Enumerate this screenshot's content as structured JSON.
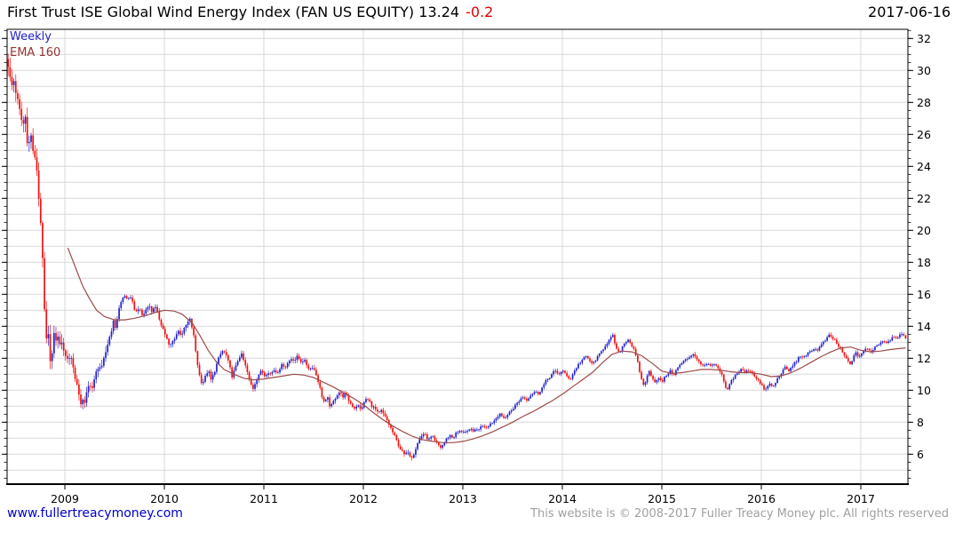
{
  "header": {
    "title": "First Trust ISE Global Wind Energy Index (FAN US EQUITY) 13.24",
    "change": "-0.2",
    "date": "2017-06-16"
  },
  "legend": {
    "timeframe": "Weekly",
    "ema": "EMA 160"
  },
  "footer": {
    "link": "www.fullertreacymoney.com",
    "copyright": "This website is © 2008-2017 Fuller Treacy Money plc. All rights reserved"
  },
  "colors": {
    "up_candle": "#2222cc",
    "down_candle": "#ee1111",
    "ema_line": "#9d4a4a",
    "grid": "#d8d8d8",
    "axis": "#000000",
    "tick_label": "#000000",
    "title_text": "#000000",
    "change_text": "#dd0000",
    "link_text": "#0000cc",
    "copyright_text": "#a0a0a0",
    "weekly_text": "#2222cc",
    "ema_text": "#993333"
  },
  "chart_data": {
    "type": "candlestick",
    "title": "First Trust ISE Global Wind Energy Index (FAN US EQUITY)",
    "timeframe": "weekly",
    "overlay": "EMA 160",
    "last_close": 13.24,
    "last_change": -0.2,
    "xlabel": "",
    "ylabel": "",
    "x_axis": {
      "start": 2008.43,
      "end": 2017.47,
      "year_labels": [
        2009,
        2010,
        2011,
        2012,
        2013,
        2014,
        2015,
        2016,
        2017
      ]
    },
    "y_axis": {
      "min": 4.1,
      "max": 32.6,
      "labels": [
        6,
        8,
        10,
        12,
        14,
        16,
        18,
        20,
        22,
        24,
        26,
        28,
        30,
        32
      ],
      "grid_step": 1,
      "minor_tick_step": 0.5
    },
    "grid": true,
    "legend_position": "top-left",
    "close_anchors": [
      [
        2008.43,
        30.4
      ],
      [
        2008.46,
        28.9
      ],
      [
        2008.49,
        29.4
      ],
      [
        2008.52,
        28.2
      ],
      [
        2008.55,
        27.3
      ],
      [
        2008.58,
        26.5
      ],
      [
        2008.6,
        27.3
      ],
      [
        2008.63,
        25.2
      ],
      [
        2008.66,
        25.9
      ],
      [
        2008.69,
        24.6
      ],
      [
        2008.72,
        23.8
      ],
      [
        2008.74,
        21.8
      ],
      [
        2008.76,
        20.4
      ],
      [
        2008.78,
        17.4
      ],
      [
        2008.8,
        14.2
      ],
      [
        2008.82,
        12.6
      ],
      [
        2008.84,
        13.6
      ],
      [
        2008.86,
        11.3
      ],
      [
        2008.88,
        12.8
      ],
      [
        2008.9,
        13.7
      ],
      [
        2008.92,
        12.9
      ],
      [
        2008.94,
        13.5
      ],
      [
        2008.96,
        12.6
      ],
      [
        2008.98,
        12.9
      ],
      [
        2009.0,
        12.3
      ],
      [
        2009.03,
        11.9
      ],
      [
        2009.06,
        12.2
      ],
      [
        2009.09,
        11.2
      ],
      [
        2009.12,
        10.4
      ],
      [
        2009.14,
        9.6
      ],
      [
        2009.16,
        9.2
      ],
      [
        2009.18,
        9.5
      ],
      [
        2009.2,
        9.1
      ],
      [
        2009.22,
        9.8
      ],
      [
        2009.25,
        10.5
      ],
      [
        2009.28,
        10.1
      ],
      [
        2009.31,
        11.0
      ],
      [
        2009.34,
        11.6
      ],
      [
        2009.37,
        11.3
      ],
      [
        2009.4,
        12.1
      ],
      [
        2009.43,
        12.9
      ],
      [
        2009.46,
        13.6
      ],
      [
        2009.49,
        14.3
      ],
      [
        2009.51,
        13.9
      ],
      [
        2009.54,
        15.0
      ],
      [
        2009.57,
        15.6
      ],
      [
        2009.6,
        16.0
      ],
      [
        2009.63,
        15.5
      ],
      [
        2009.66,
        15.9
      ],
      [
        2009.69,
        15.3
      ],
      [
        2009.72,
        14.8
      ],
      [
        2009.75,
        15.2
      ],
      [
        2009.78,
        14.6
      ],
      [
        2009.81,
        15.0
      ],
      [
        2009.84,
        15.4
      ],
      [
        2009.87,
        14.9
      ],
      [
        2009.9,
        15.3
      ],
      [
        2009.93,
        14.8
      ],
      [
        2009.96,
        14.3
      ],
      [
        2009.99,
        13.8
      ],
      [
        2010.02,
        13.3
      ],
      [
        2010.05,
        12.7
      ],
      [
        2010.08,
        13.0
      ],
      [
        2010.11,
        13.4
      ],
      [
        2010.14,
        13.7
      ],
      [
        2010.17,
        13.5
      ],
      [
        2010.2,
        13.8
      ],
      [
        2010.23,
        14.2
      ],
      [
        2010.26,
        14.4
      ],
      [
        2010.29,
        13.6
      ],
      [
        2010.32,
        12.2
      ],
      [
        2010.35,
        11.0
      ],
      [
        2010.38,
        10.4
      ],
      [
        2010.41,
        10.8
      ],
      [
        2010.44,
        11.3
      ],
      [
        2010.47,
        10.6
      ],
      [
        2010.5,
        11.1
      ],
      [
        2010.53,
        11.7
      ],
      [
        2010.56,
        12.2
      ],
      [
        2010.59,
        12.5
      ],
      [
        2010.62,
        12.2
      ],
      [
        2010.65,
        11.6
      ],
      [
        2010.68,
        10.9
      ],
      [
        2010.71,
        11.3
      ],
      [
        2010.74,
        11.9
      ],
      [
        2010.77,
        12.3
      ],
      [
        2010.8,
        11.8
      ],
      [
        2010.83,
        11.2
      ],
      [
        2010.86,
        10.5
      ],
      [
        2010.89,
        10.1
      ],
      [
        2010.92,
        10.6
      ],
      [
        2010.95,
        11.0
      ],
      [
        2010.98,
        11.2
      ],
      [
        2011.01,
        10.9
      ],
      [
        2011.04,
        11.2
      ],
      [
        2011.07,
        11.0
      ],
      [
        2011.1,
        11.3
      ],
      [
        2011.13,
        11.1
      ],
      [
        2011.16,
        11.4
      ],
      [
        2011.19,
        11.6
      ],
      [
        2011.22,
        11.5
      ],
      [
        2011.25,
        11.8
      ],
      [
        2011.28,
        12.0
      ],
      [
        2011.31,
        11.9
      ],
      [
        2011.34,
        12.1
      ],
      [
        2011.37,
        11.8
      ],
      [
        2011.4,
        11.9
      ],
      [
        2011.43,
        11.6
      ],
      [
        2011.46,
        11.3
      ],
      [
        2011.49,
        11.5
      ],
      [
        2011.52,
        11.1
      ],
      [
        2011.55,
        10.5
      ],
      [
        2011.58,
        9.7
      ],
      [
        2011.61,
        9.2
      ],
      [
        2011.64,
        9.5
      ],
      [
        2011.67,
        8.9
      ],
      [
        2011.7,
        9.3
      ],
      [
        2011.73,
        9.7
      ],
      [
        2011.76,
        9.9
      ],
      [
        2011.79,
        9.6
      ],
      [
        2011.82,
        9.8
      ],
      [
        2011.85,
        9.4
      ],
      [
        2011.88,
        9.1
      ],
      [
        2011.91,
        8.9
      ],
      [
        2011.94,
        9.1
      ],
      [
        2011.97,
        8.8
      ],
      [
        2012.0,
        9.1
      ],
      [
        2012.03,
        9.5
      ],
      [
        2012.06,
        9.3
      ],
      [
        2012.09,
        9.0
      ],
      [
        2012.12,
        8.8
      ],
      [
        2012.15,
        8.5
      ],
      [
        2012.18,
        8.7
      ],
      [
        2012.21,
        8.4
      ],
      [
        2012.24,
        8.1
      ],
      [
        2012.27,
        7.7
      ],
      [
        2012.3,
        7.3
      ],
      [
        2012.33,
        6.9
      ],
      [
        2012.36,
        6.5
      ],
      [
        2012.39,
        6.15
      ],
      [
        2012.42,
        5.9
      ],
      [
        2012.45,
        6.2
      ],
      [
        2012.48,
        5.8
      ],
      [
        2012.51,
        6.1
      ],
      [
        2012.54,
        6.6
      ],
      [
        2012.57,
        7.0
      ],
      [
        2012.6,
        7.3
      ],
      [
        2012.63,
        7.1
      ],
      [
        2012.66,
        6.9
      ],
      [
        2012.69,
        7.1
      ],
      [
        2012.72,
        6.8
      ],
      [
        2012.75,
        6.6
      ],
      [
        2012.78,
        6.4
      ],
      [
        2012.81,
        6.7
      ],
      [
        2012.84,
        7.0
      ],
      [
        2012.87,
        7.2
      ],
      [
        2012.9,
        7.0
      ],
      [
        2012.93,
        7.3
      ],
      [
        2012.96,
        7.4
      ],
      [
        2013.0,
        7.45
      ],
      [
        2013.04,
        7.35
      ],
      [
        2013.08,
        7.55
      ],
      [
        2013.12,
        7.45
      ],
      [
        2013.16,
        7.6
      ],
      [
        2013.2,
        7.8
      ],
      [
        2013.24,
        7.7
      ],
      [
        2013.27,
        7.9
      ],
      [
        2013.3,
        8.0
      ],
      [
        2013.34,
        8.3
      ],
      [
        2013.37,
        8.6
      ],
      [
        2013.4,
        8.2
      ],
      [
        2013.44,
        8.4
      ],
      [
        2013.48,
        8.7
      ],
      [
        2013.52,
        9.0
      ],
      [
        2013.56,
        9.3
      ],
      [
        2013.6,
        9.6
      ],
      [
        2013.64,
        9.4
      ],
      [
        2013.68,
        9.7
      ],
      [
        2013.72,
        9.9
      ],
      [
        2013.76,
        9.8
      ],
      [
        2013.8,
        10.2
      ],
      [
        2013.84,
        10.6
      ],
      [
        2013.88,
        10.9
      ],
      [
        2013.92,
        11.2
      ],
      [
        2013.96,
        11.0
      ],
      [
        2014.0,
        11.25
      ],
      [
        2014.04,
        10.9
      ],
      [
        2014.08,
        10.7
      ],
      [
        2014.12,
        11.2
      ],
      [
        2014.16,
        11.6
      ],
      [
        2014.2,
        11.9
      ],
      [
        2014.24,
        12.1
      ],
      [
        2014.27,
        11.9
      ],
      [
        2014.3,
        11.6
      ],
      [
        2014.33,
        11.9
      ],
      [
        2014.36,
        12.1
      ],
      [
        2014.4,
        12.5
      ],
      [
        2014.44,
        12.9
      ],
      [
        2014.48,
        13.2
      ],
      [
        2014.51,
        13.4
      ],
      [
        2014.54,
        12.6
      ],
      [
        2014.57,
        12.3
      ],
      [
        2014.6,
        12.7
      ],
      [
        2014.63,
        13.0
      ],
      [
        2014.66,
        13.2
      ],
      [
        2014.69,
        12.9
      ],
      [
        2014.72,
        12.5
      ],
      [
        2014.75,
        11.9
      ],
      [
        2014.78,
        11.1
      ],
      [
        2014.81,
        10.3
      ],
      [
        2014.84,
        10.6
      ],
      [
        2014.87,
        11.2
      ],
      [
        2014.9,
        10.9
      ],
      [
        2014.93,
        10.5
      ],
      [
        2014.96,
        10.8
      ],
      [
        2015.0,
        10.5
      ],
      [
        2015.04,
        10.9
      ],
      [
        2015.08,
        11.2
      ],
      [
        2015.12,
        11.0
      ],
      [
        2015.16,
        11.4
      ],
      [
        2015.2,
        11.7
      ],
      [
        2015.24,
        11.9
      ],
      [
        2015.28,
        12.1
      ],
      [
        2015.31,
        12.3
      ],
      [
        2015.34,
        12.1
      ],
      [
        2015.37,
        11.8
      ],
      [
        2015.4,
        11.5
      ],
      [
        2015.44,
        11.7
      ],
      [
        2015.48,
        11.5
      ],
      [
        2015.52,
        11.6
      ],
      [
        2015.56,
        11.4
      ],
      [
        2015.6,
        11.0
      ],
      [
        2015.63,
        10.3
      ],
      [
        2015.66,
        10.0
      ],
      [
        2015.69,
        10.5
      ],
      [
        2015.72,
        10.8
      ],
      [
        2015.76,
        11.1
      ],
      [
        2015.8,
        11.3
      ],
      [
        2015.84,
        11.1
      ],
      [
        2015.88,
        11.3
      ],
      [
        2015.92,
        11.0
      ],
      [
        2015.96,
        10.7
      ],
      [
        2016.0,
        10.3
      ],
      [
        2016.04,
        10.0
      ],
      [
        2016.08,
        10.4
      ],
      [
        2016.12,
        10.2
      ],
      [
        2016.16,
        10.7
      ],
      [
        2016.2,
        11.1
      ],
      [
        2016.24,
        11.4
      ],
      [
        2016.28,
        11.2
      ],
      [
        2016.32,
        11.6
      ],
      [
        2016.36,
        11.9
      ],
      [
        2016.4,
        12.2
      ],
      [
        2016.44,
        12.0
      ],
      [
        2016.48,
        12.4
      ],
      [
        2016.52,
        12.6
      ],
      [
        2016.56,
        12.5
      ],
      [
        2016.6,
        12.8
      ],
      [
        2016.64,
        13.1
      ],
      [
        2016.68,
        13.4
      ],
      [
        2016.71,
        13.3
      ],
      [
        2016.74,
        13.1
      ],
      [
        2016.78,
        12.7
      ],
      [
        2016.82,
        12.3
      ],
      [
        2016.86,
        11.9
      ],
      [
        2016.89,
        11.6
      ],
      [
        2016.92,
        12.0
      ],
      [
        2016.95,
        12.3
      ],
      [
        2016.98,
        12.1
      ],
      [
        2017.02,
        12.4
      ],
      [
        2017.06,
        12.6
      ],
      [
        2017.1,
        12.4
      ],
      [
        2017.14,
        12.7
      ],
      [
        2017.18,
        12.9
      ],
      [
        2017.22,
        13.1
      ],
      [
        2017.26,
        13.0
      ],
      [
        2017.3,
        13.2
      ],
      [
        2017.33,
        13.4
      ],
      [
        2017.36,
        13.3
      ],
      [
        2017.39,
        13.45
      ],
      [
        2017.42,
        13.42
      ],
      [
        2017.45,
        13.24
      ]
    ],
    "ema_anchors": [
      [
        2009.03,
        18.9
      ],
      [
        2009.08,
        18.1
      ],
      [
        2009.13,
        17.3
      ],
      [
        2009.18,
        16.5
      ],
      [
        2009.25,
        15.7
      ],
      [
        2009.32,
        15.0
      ],
      [
        2009.4,
        14.6
      ],
      [
        2009.5,
        14.4
      ],
      [
        2009.6,
        14.4
      ],
      [
        2009.7,
        14.5
      ],
      [
        2009.8,
        14.65
      ],
      [
        2009.9,
        14.85
      ],
      [
        2010.0,
        15.0
      ],
      [
        2010.1,
        14.95
      ],
      [
        2010.18,
        14.75
      ],
      [
        2010.28,
        14.2
      ],
      [
        2010.36,
        13.4
      ],
      [
        2010.44,
        12.5
      ],
      [
        2010.52,
        11.8
      ],
      [
        2010.6,
        11.3
      ],
      [
        2010.7,
        11.0
      ],
      [
        2010.8,
        10.75
      ],
      [
        2010.9,
        10.65
      ],
      [
        2011.0,
        10.7
      ],
      [
        2011.1,
        10.8
      ],
      [
        2011.2,
        10.9
      ],
      [
        2011.3,
        11.0
      ],
      [
        2011.4,
        10.95
      ],
      [
        2011.5,
        10.8
      ],
      [
        2011.6,
        10.5
      ],
      [
        2011.7,
        10.2
      ],
      [
        2011.8,
        9.85
      ],
      [
        2011.9,
        9.5
      ],
      [
        2012.0,
        9.1
      ],
      [
        2012.1,
        8.6
      ],
      [
        2012.2,
        8.15
      ],
      [
        2012.3,
        7.75
      ],
      [
        2012.4,
        7.4
      ],
      [
        2012.5,
        7.1
      ],
      [
        2012.6,
        6.9
      ],
      [
        2012.7,
        6.8
      ],
      [
        2012.8,
        6.72
      ],
      [
        2012.9,
        6.72
      ],
      [
        2013.0,
        6.8
      ],
      [
        2013.1,
        6.95
      ],
      [
        2013.2,
        7.15
      ],
      [
        2013.3,
        7.4
      ],
      [
        2013.4,
        7.7
      ],
      [
        2013.5,
        8.0
      ],
      [
        2013.6,
        8.35
      ],
      [
        2013.7,
        8.65
      ],
      [
        2013.8,
        9.0
      ],
      [
        2013.9,
        9.35
      ],
      [
        2014.0,
        9.75
      ],
      [
        2014.1,
        10.2
      ],
      [
        2014.2,
        10.65
      ],
      [
        2014.3,
        11.1
      ],
      [
        2014.4,
        11.7
      ],
      [
        2014.5,
        12.25
      ],
      [
        2014.6,
        12.45
      ],
      [
        2014.7,
        12.4
      ],
      [
        2014.8,
        12.15
      ],
      [
        2014.9,
        11.7
      ],
      [
        2015.0,
        11.2
      ],
      [
        2015.1,
        11.05
      ],
      [
        2015.2,
        11.1
      ],
      [
        2015.3,
        11.2
      ],
      [
        2015.4,
        11.3
      ],
      [
        2015.5,
        11.3
      ],
      [
        2015.6,
        11.25
      ],
      [
        2015.7,
        11.15
      ],
      [
        2015.8,
        11.1
      ],
      [
        2015.9,
        11.1
      ],
      [
        2016.0,
        11.0
      ],
      [
        2016.1,
        10.85
      ],
      [
        2016.2,
        10.9
      ],
      [
        2016.3,
        11.1
      ],
      [
        2016.4,
        11.4
      ],
      [
        2016.5,
        11.75
      ],
      [
        2016.6,
        12.1
      ],
      [
        2016.7,
        12.4
      ],
      [
        2016.8,
        12.65
      ],
      [
        2016.9,
        12.7
      ],
      [
        2017.0,
        12.5
      ],
      [
        2017.1,
        12.4
      ],
      [
        2017.2,
        12.45
      ],
      [
        2017.3,
        12.55
      ],
      [
        2017.45,
        12.65
      ]
    ]
  }
}
